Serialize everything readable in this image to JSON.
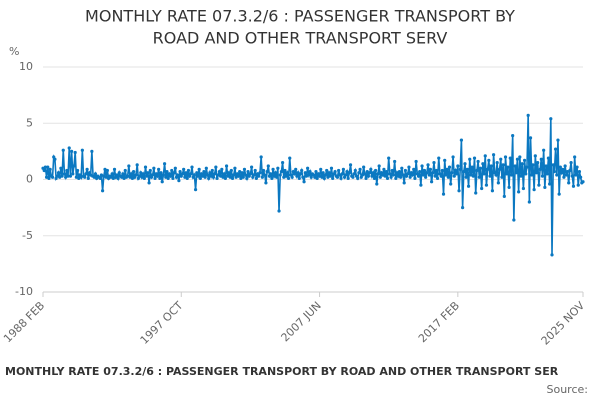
{
  "chart_data": {
    "type": "line",
    "title_lines": [
      "MONTHLY RATE 07.3.2/6 : PASSENGER TRANSPORT BY",
      "ROAD AND OTHER TRANSPORT SERV"
    ],
    "y_label": "%",
    "footer": "MONTHLY RATE 07.3.2/6 : PASSENGER TRANSPORT BY ROAD AND OTHER TRANSPORT SER",
    "source": "Source:",
    "ylim": [
      -10,
      10
    ],
    "yticks": [
      10,
      5,
      0,
      -5,
      -10
    ],
    "grid": true,
    "categories": [
      "1988 FEB",
      null,
      null,
      null,
      null,
      null,
      null,
      null,
      null,
      null,
      null,
      null,
      null,
      null,
      null,
      null,
      null,
      null,
      null,
      null,
      null,
      null,
      null,
      null,
      null,
      null,
      null,
      null,
      null,
      null,
      null,
      null,
      null,
      null,
      null,
      null,
      null,
      null,
      null,
      null,
      null,
      null,
      null,
      null,
      null,
      null,
      null,
      null,
      null,
      null,
      null,
      null,
      null,
      null,
      null,
      null,
      null,
      null,
      null,
      null,
      null,
      null,
      null,
      null,
      null,
      null,
      null,
      null,
      null,
      null,
      null,
      null,
      null,
      null,
      null,
      null,
      null,
      null,
      null,
      null,
      null,
      null,
      null,
      null,
      null,
      null,
      null,
      null,
      null,
      null,
      null,
      null,
      null,
      null,
      null,
      null,
      null,
      null,
      null,
      null,
      null,
      null,
      null,
      null,
      null,
      null,
      null,
      null,
      null,
      null,
      null,
      null,
      null,
      null,
      null,
      null,
      "1997 OCT",
      null,
      null,
      null,
      null,
      null,
      null,
      null,
      null,
      null,
      null,
      null,
      null,
      null,
      null,
      null,
      null,
      null,
      null,
      null,
      null,
      null,
      null,
      null,
      null,
      null,
      null,
      null,
      null,
      null,
      null,
      null,
      null,
      null,
      null,
      null,
      null,
      null,
      null,
      null,
      null,
      null,
      null,
      null,
      null,
      null,
      null,
      null,
      null,
      null,
      null,
      null,
      null,
      null,
      null,
      null,
      null,
      null,
      null,
      null,
      null,
      null,
      null,
      null,
      null,
      null,
      null,
      null,
      null,
      null,
      null,
      null,
      null,
      null,
      null,
      null,
      null,
      null,
      null,
      null,
      null,
      null,
      null,
      null,
      null,
      null,
      null,
      null,
      null,
      null,
      null,
      null,
      null,
      null,
      null,
      null,
      null,
      null,
      null,
      null,
      null,
      null,
      null,
      null,
      null,
      null,
      null,
      null,
      null,
      null,
      null,
      null,
      null,
      null,
      null,
      null,
      "2007 JUN",
      null,
      null,
      null,
      null,
      null,
      null,
      null,
      null,
      null,
      null,
      null,
      null,
      null,
      null,
      null,
      null,
      null,
      null,
      null,
      null,
      null,
      null,
      null,
      null,
      null,
      null,
      null,
      null,
      null,
      null,
      null,
      null,
      null,
      null,
      null,
      null,
      null,
      null,
      null,
      null,
      null,
      null,
      null,
      null,
      null,
      null,
      null,
      null,
      null,
      null,
      null,
      null,
      null,
      null,
      null,
      null,
      null,
      null,
      null,
      null,
      null,
      null,
      null,
      null,
      null,
      null,
      null,
      null,
      null,
      null,
      null,
      null,
      null,
      null,
      null,
      null,
      null,
      null,
      null,
      null,
      null,
      null,
      null,
      null,
      null,
      null,
      null,
      null,
      null,
      null,
      null,
      null,
      null,
      null,
      null,
      null,
      null,
      null,
      null,
      null,
      null,
      null,
      null,
      null,
      null,
      null,
      null,
      null,
      null,
      null,
      null,
      null,
      null,
      null,
      null,
      "2017 FEB",
      null,
      null,
      null,
      null,
      null,
      null,
      null,
      null,
      null,
      null,
      null,
      null,
      null,
      null,
      null,
      null,
      null,
      null,
      null,
      null,
      null,
      null,
      null,
      null,
      null,
      null,
      null,
      null,
      null,
      null,
      null,
      null,
      null,
      null,
      null,
      null,
      null,
      null,
      null,
      null,
      null,
      null,
      null,
      null,
      null,
      null,
      null,
      null,
      null,
      null,
      null,
      null,
      null,
      null,
      null,
      null,
      null,
      null,
      null,
      null,
      null,
      null,
      null,
      null,
      null,
      null,
      null,
      null,
      null,
      null,
      null,
      null,
      null,
      null,
      null,
      null,
      null,
      null,
      null,
      null,
      null,
      null,
      null,
      null,
      null,
      null,
      null,
      null,
      null,
      null,
      null,
      null,
      null,
      null,
      null,
      null,
      null,
      null,
      null,
      null,
      null,
      null,
      null,
      null,
      "2025 NOV"
    ],
    "series": [
      {
        "color": "#0b78c1",
        "values": [
          1.0,
          0.8,
          1.1,
          0.2,
          1.1,
          0.1,
          0.9,
          0.3,
          0.2,
          2.0,
          1.8,
          0.1,
          0.3,
          0.6,
          0.2,
          1.0,
          0.3,
          2.6,
          0.5,
          0.2,
          0.8,
          0.3,
          2.8,
          0.3,
          2.5,
          0.5,
          1.2,
          2.4,
          0.2,
          0.8,
          0.1,
          0.4,
          0.2,
          2.6,
          0.3,
          0.2,
          0.5,
          0.9,
          0.1,
          0.6,
          0.4,
          2.5,
          0.3,
          0.2,
          0.5,
          0.1,
          0.3,
          0.2,
          0.1,
          0.4,
          -1.0,
          0.3,
          0.9,
          0.2,
          0.8,
          0.1,
          0.3,
          0.2,
          0.5,
          0.1,
          0.9,
          0.2,
          0.4,
          0.1,
          0.6,
          0.3,
          0.2,
          0.5,
          0.1,
          0.8,
          0.2,
          0.3,
          1.2,
          0.2,
          0.5,
          0.1,
          0.7,
          0.2,
          0.4,
          1.3,
          0.1,
          0.3,
          0.6,
          0.2,
          0.5,
          0.1,
          1.1,
          0.3,
          0.6,
          -0.3,
          0.8,
          0.2,
          0.4,
          1.0,
          0.1,
          0.5,
          0.3,
          0.9,
          0.1,
          0.6,
          -0.2,
          0.4,
          1.4,
          0.2,
          0.7,
          0.1,
          0.5,
          0.3,
          0.8,
          0.1,
          0.6,
          1.0,
          0.2,
          0.4,
          -0.1,
          0.7,
          0.3,
          0.5,
          0.9,
          0.2,
          0.6,
          0.1,
          0.8,
          0.3,
          0.5,
          1.1,
          0.2,
          0.4,
          -0.9,
          0.6,
          0.3,
          0.9,
          0.1,
          0.5,
          0.3,
          0.7,
          0.2,
          1.0,
          0.4,
          0.1,
          0.6,
          0.3,
          0.8,
          0.2,
          0.5,
          1.1,
          0.1,
          0.4,
          0.7,
          0.3,
          0.9,
          0.2,
          0.5,
          0.1,
          1.2,
          0.3,
          0.6,
          0.2,
          0.8,
          0.1,
          0.4,
          1.0,
          0.2,
          0.5,
          0.3,
          0.7,
          0.1,
          0.6,
          0.2,
          0.9,
          0.4,
          0.1,
          0.7,
          0.3,
          0.5,
          1.1,
          0.2,
          0.4,
          0.8,
          0.1,
          0.5,
          0.3,
          0.6,
          2.0,
          0.2,
          0.8,
          0.4,
          -0.3,
          0.7,
          1.2,
          0.3,
          0.5,
          0.1,
          0.9,
          0.3,
          0.6,
          0.2,
          1.0,
          -2.8,
          0.4,
          0.7,
          1.5,
          0.2,
          0.8,
          0.3,
          0.6,
          0.1,
          1.9,
          0.4,
          0.2,
          0.7,
          0.5,
          0.9,
          0.3,
          0.6,
          0.1,
          0.5,
          0.8,
          0.2,
          -0.2,
          0.6,
          0.3,
          1.0,
          0.4,
          0.7,
          0.2,
          0.5,
          0.4,
          0.2,
          0.7,
          0.1,
          0.5,
          0.3,
          0.9,
          0.2,
          0.6,
          0.1,
          0.4,
          0.8,
          0.2,
          0.6,
          0.3,
          1.0,
          0.1,
          0.5,
          0.7,
          0.3,
          0.2,
          0.8,
          0.4,
          0.1,
          0.5,
          0.9,
          0.2,
          0.4,
          0.7,
          0.1,
          0.6,
          1.3,
          0.3,
          0.2,
          0.5,
          0.8,
          0.3,
          0.1,
          0.6,
          0.9,
          0.2,
          0.4,
          1.1,
          0.5,
          0.1,
          0.7,
          0.3,
          0.6,
          0.9,
          0.3,
          0.6,
          0.1,
          0.8,
          -0.4,
          0.5,
          1.2,
          0.2,
          0.6,
          0.4,
          0.9,
          0.3,
          0.7,
          0.1,
          1.9,
          0.5,
          0.2,
          0.8,
          0.4,
          1.6,
          0.1,
          0.6,
          0.3,
          0.7,
          0.2,
          1.0,
          0.4,
          -0.3,
          0.8,
          0.3,
          0.5,
          1.1,
          0.2,
          0.6,
          0.4,
          0.9,
          0.1,
          1.6,
          0.5,
          0.3,
          0.7,
          -0.5,
          1.2,
          0.4,
          0.8,
          0.2,
          0.6,
          1.3,
          0.4,
          0.9,
          -0.2,
          0.6,
          1.5,
          0.3,
          0.8,
          0.1,
          1.9,
          0.5,
          0.3,
          0.8,
          -1.3,
          1.7,
          0.4,
          0.9,
          0.2,
          1.1,
          -0.4,
          0.6,
          2.0,
          0.3,
          0.8,
          0.5,
          1.2,
          -1.0,
          0.9,
          3.5,
          -2.5,
          0.7,
          1.4,
          0.2,
          0.9,
          -0.6,
          1.8,
          0.4,
          1.1,
          0.3,
          1.9,
          -1.2,
          0.8,
          1.6,
          0.2,
          1.0,
          -0.8,
          1.4,
          0.5,
          2.1,
          -0.5,
          0.9,
          1.7,
          0.3,
          1.2,
          -1.0,
          2.2,
          0.6,
          0.4,
          1.5,
          -0.3,
          0.9,
          1.8,
          0.2,
          1.3,
          -1.5,
          2.0,
          0.5,
          1.1,
          -0.7,
          1.9,
          0.4,
          3.9,
          -3.6,
          1.2,
          0.6,
          1.8,
          -1.1,
          2.0,
          0.3,
          1.4,
          -0.8,
          1.7,
          0.5,
          1.1,
          5.7,
          -2.0,
          3.7,
          0.4,
          1.3,
          -0.9,
          2.1,
          0.6,
          1.5,
          -0.5,
          0.9,
          1.8,
          0.3,
          2.6,
          -0.7,
          1.2,
          0.5,
          1.9,
          -0.4,
          5.4,
          -6.7,
          1.3,
          0.7,
          2.7,
          0.4,
          3.5,
          -1.3,
          1.1,
          0.6,
          0.9,
          0.2,
          1.2,
          0.4,
          0.7,
          -0.3,
          0.8,
          1.5,
          0.3,
          -0.6,
          2.0,
          0.4,
          1.1,
          -0.5,
          0.7,
          0.2,
          -0.3,
          -0.2
        ]
      }
    ]
  }
}
